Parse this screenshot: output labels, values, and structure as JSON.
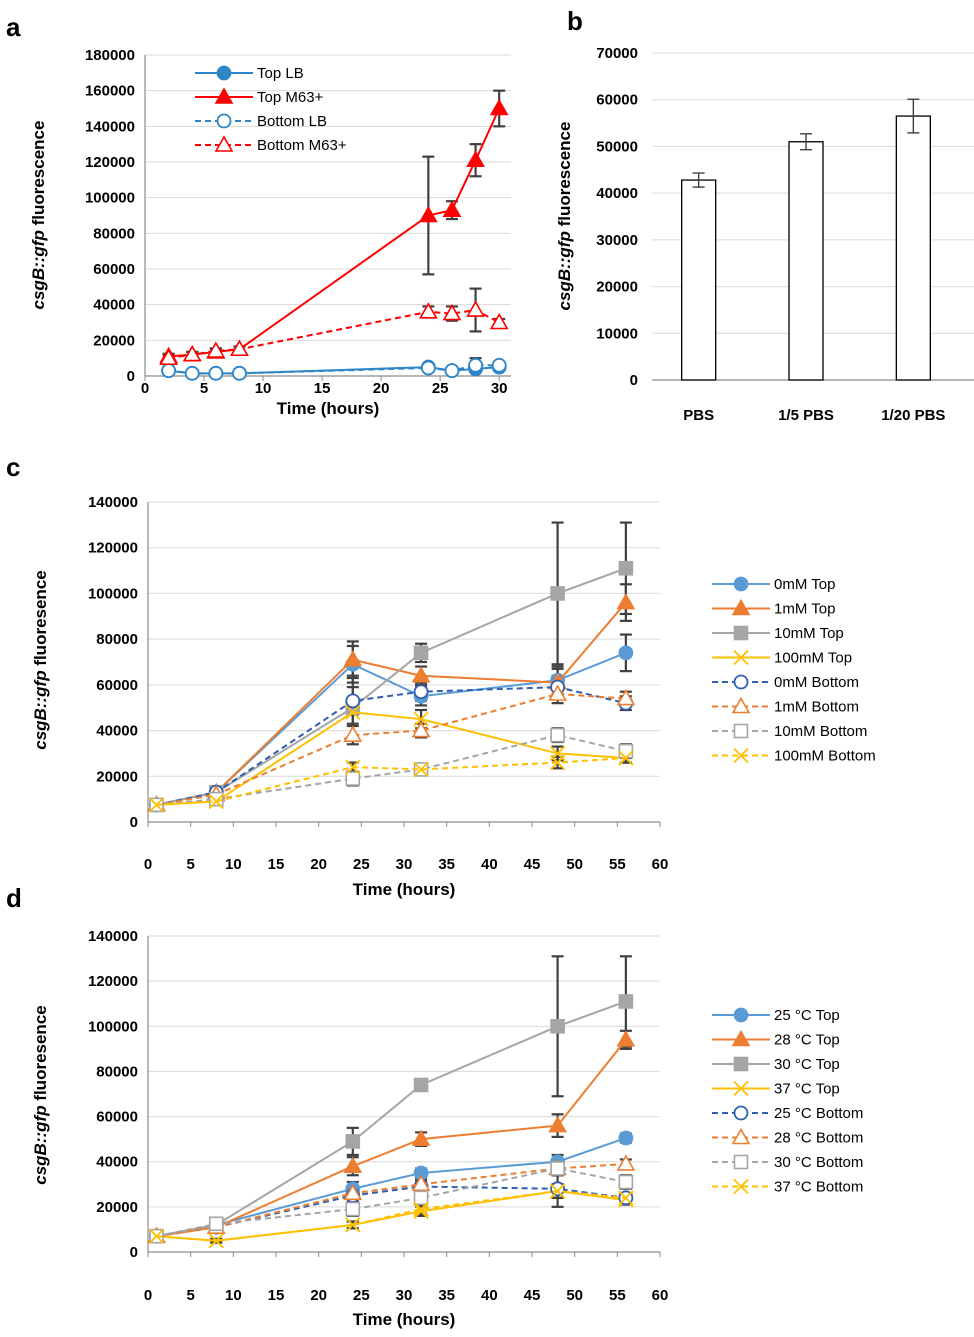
{
  "panels": {
    "a": {
      "letter": "a"
    },
    "b": {
      "letter": "b"
    },
    "c": {
      "letter": "c"
    },
    "d": {
      "letter": "d"
    }
  },
  "colors": {
    "blue": "#3366cc",
    "blue_line": "#2e86c8",
    "red": "#ff0000",
    "lightblue": "#5b9bd5",
    "orange": "#ed7d31",
    "gray": "#a5a5a5",
    "yellow": "#ffc000",
    "error_bar": "#404040"
  },
  "chart_data": [
    {
      "id": "a",
      "type": "line",
      "title": "",
      "ylabel_italic": "csgB::gfp",
      "ylabel_rest": " fluorescence",
      "xlabel": "Time (hours)",
      "xlim": [
        0,
        31
      ],
      "ylim": [
        0,
        180000
      ],
      "xticks": [
        0,
        5,
        10,
        15,
        20,
        25,
        30
      ],
      "yticks": [
        0,
        20000,
        40000,
        60000,
        80000,
        100000,
        120000,
        140000,
        160000,
        180000
      ],
      "grid": true,
      "legend_position": "top-left",
      "series": [
        {
          "name": "Top LB",
          "color": "#2e86c8",
          "marker": "circle",
          "filled": true,
          "dashed": false,
          "x": [
            2,
            4,
            6,
            8,
            24,
            26,
            28,
            30
          ],
          "y": [
            3000,
            1500,
            1500,
            1500,
            5000,
            3000,
            4000,
            5000
          ],
          "err": [
            500,
            400,
            400,
            400,
            800,
            600,
            1200,
            1000
          ]
        },
        {
          "name": "Top M63+",
          "color": "#ff0000",
          "marker": "triangle",
          "filled": true,
          "dashed": false,
          "x": [
            2,
            4,
            6,
            8,
            24,
            26,
            28,
            30
          ],
          "y": [
            11000,
            12000,
            13500,
            15000,
            90000,
            93000,
            121000,
            150000
          ],
          "err": [
            1500,
            1500,
            1500,
            1500,
            33000,
            5000,
            9000,
            10000
          ]
        },
        {
          "name": "Bottom LB",
          "color": "#2e86c8",
          "marker": "circle",
          "filled": false,
          "dashed": true,
          "x": [
            2,
            4,
            6,
            8,
            24,
            26,
            28,
            30
          ],
          "y": [
            3000,
            1500,
            1500,
            1500,
            4500,
            3000,
            6000,
            6000
          ],
          "err": [
            500,
            400,
            400,
            400,
            800,
            600,
            4000,
            1000
          ]
        },
        {
          "name": "Bottom M63+",
          "color": "#ff0000",
          "marker": "triangle",
          "filled": false,
          "dashed": true,
          "x": [
            2,
            4,
            6,
            8,
            24,
            26,
            28,
            30
          ],
          "y": [
            10000,
            12000,
            14000,
            15000,
            36000,
            35000,
            37000,
            30000
          ],
          "err": [
            1500,
            1500,
            1500,
            1500,
            3000,
            4000,
            12000,
            2000
          ]
        }
      ]
    },
    {
      "id": "b",
      "type": "bar",
      "title": "",
      "ylabel_italic": "csgB::gfp",
      "ylabel_rest": " fluorescence",
      "xlabel": "",
      "categories": [
        "PBS",
        "1/5 PBS",
        "1/20 PBS"
      ],
      "values": [
        42800,
        51000,
        56500
      ],
      "err": [
        1500,
        1700,
        3600
      ],
      "ylim": [
        0,
        70000
      ],
      "yticks": [
        0,
        10000,
        20000,
        30000,
        40000,
        50000,
        60000,
        70000
      ],
      "grid": true
    },
    {
      "id": "c",
      "type": "line",
      "title": "",
      "ylabel_italic": "csgB::gfp",
      "ylabel_rest": " fluoresence",
      "xlabel": "Time (hours)",
      "xlim": [
        0,
        60
      ],
      "ylim": [
        0,
        140000
      ],
      "xticks": [
        0,
        5,
        10,
        15,
        20,
        25,
        30,
        35,
        40,
        45,
        50,
        55,
        60
      ],
      "yticks": [
        0,
        20000,
        40000,
        60000,
        80000,
        100000,
        120000,
        140000
      ],
      "grid": true,
      "legend_position": "right",
      "series": [
        {
          "name": "0mM Top",
          "color": "#5b9bd5",
          "marker": "circle",
          "filled": true,
          "dashed": false,
          "x": [
            1,
            8,
            24,
            32,
            48,
            56
          ],
          "y": [
            7500,
            13000,
            69000,
            55000,
            62000,
            74000
          ],
          "err": [
            800,
            1500,
            8000,
            4000,
            6000,
            8000
          ]
        },
        {
          "name": "1mM Top",
          "color": "#ed7d31",
          "marker": "triangle",
          "filled": true,
          "dashed": false,
          "x": [
            1,
            8,
            24,
            32,
            48,
            56
          ],
          "y": [
            7500,
            13000,
            71000,
            64000,
            61000,
            96000
          ],
          "err": [
            800,
            1500,
            8000,
            4000,
            6000,
            8000
          ]
        },
        {
          "name": "10mM Top",
          "color": "#a5a5a5",
          "marker": "square",
          "filled": true,
          "dashed": false,
          "x": [
            1,
            8,
            24,
            32,
            48,
            56
          ],
          "y": [
            7500,
            13000,
            50000,
            74000,
            100000,
            111000
          ],
          "err": [
            800,
            1500,
            14000,
            4000,
            31000,
            20000
          ]
        },
        {
          "name": "100mM Top",
          "color": "#ffc000",
          "marker": "x",
          "filled": true,
          "dashed": false,
          "x": [
            1,
            8,
            24,
            32,
            48,
            56
          ],
          "y": [
            7500,
            9000,
            48000,
            45000,
            30000,
            28000
          ],
          "err": [
            800,
            1500,
            5000,
            4000,
            3000,
            2000
          ]
        },
        {
          "name": "0mM Bottom",
          "color": "#2e5fb0",
          "marker": "circle",
          "filled": false,
          "dashed": true,
          "x": [
            1,
            8,
            24,
            32,
            48,
            56
          ],
          "y": [
            7500,
            13000,
            53000,
            57000,
            59000,
            52000
          ],
          "err": [
            800,
            1500,
            6000,
            4000,
            5000,
            3000
          ]
        },
        {
          "name": "1mM Bottom",
          "color": "#ed7d31",
          "marker": "triangle",
          "filled": false,
          "dashed": true,
          "x": [
            1,
            8,
            24,
            32,
            48,
            56
          ],
          "y": [
            7500,
            12000,
            38000,
            40000,
            56000,
            54000
          ],
          "err": [
            800,
            1500,
            4000,
            3000,
            4000,
            3000
          ]
        },
        {
          "name": "10mM Bottom",
          "color": "#a5a5a5",
          "marker": "square",
          "filled": false,
          "dashed": true,
          "x": [
            1,
            8,
            24,
            32,
            48,
            56
          ],
          "y": [
            7500,
            10000,
            19000,
            23000,
            38000,
            31000
          ],
          "err": [
            800,
            1500,
            3000,
            2000,
            3000,
            3000
          ]
        },
        {
          "name": "100mM Bottom",
          "color": "#ffc000",
          "marker": "x",
          "filled": false,
          "dashed": true,
          "x": [
            1,
            8,
            24,
            32,
            48,
            56
          ],
          "y": [
            7500,
            9000,
            24000,
            23000,
            26000,
            28000
          ],
          "err": [
            800,
            1500,
            2000,
            2000,
            2500,
            2000
          ]
        }
      ]
    },
    {
      "id": "d",
      "type": "line",
      "title": "",
      "ylabel_italic": "csgB::gfp",
      "ylabel_rest": " fluoresence",
      "xlabel": "Time (hours)",
      "xlim": [
        0,
        60
      ],
      "ylim": [
        0,
        140000
      ],
      "xticks": [
        0,
        5,
        10,
        15,
        20,
        25,
        30,
        35,
        40,
        45,
        50,
        55,
        60
      ],
      "yticks": [
        0,
        20000,
        40000,
        60000,
        80000,
        100000,
        120000,
        140000
      ],
      "grid": true,
      "legend_position": "right",
      "series": [
        {
          "name": "25 °C Top",
          "color": "#5b9bd5",
          "marker": "circle",
          "filled": true,
          "dashed": false,
          "x": [
            1,
            8,
            24,
            32,
            48,
            56
          ],
          "y": [
            7000,
            12000,
            28000,
            35000,
            40000,
            50500
          ],
          "err": [
            800,
            1500,
            3000,
            2000,
            3000,
            2000
          ]
        },
        {
          "name": "28 °C Top",
          "color": "#ed7d31",
          "marker": "triangle",
          "filled": true,
          "dashed": false,
          "x": [
            1,
            8,
            24,
            32,
            48,
            56
          ],
          "y": [
            7000,
            11000,
            38000,
            50000,
            56000,
            94000
          ],
          "err": [
            800,
            1500,
            4000,
            3000,
            5000,
            4000
          ]
        },
        {
          "name": "30 °C Top",
          "color": "#a5a5a5",
          "marker": "square",
          "filled": true,
          "dashed": false,
          "x": [
            1,
            8,
            24,
            32,
            48,
            56
          ],
          "y": [
            7000,
            12000,
            49000,
            74000,
            100000,
            111000
          ],
          "err": [
            800,
            1500,
            6000,
            2000,
            31000,
            20000
          ]
        },
        {
          "name": "37 °C Top",
          "color": "#ffc000",
          "marker": "x",
          "filled": true,
          "dashed": false,
          "x": [
            1,
            8,
            24,
            32,
            48,
            56
          ],
          "y": [
            7000,
            5000,
            12000,
            18000,
            27000,
            23000
          ],
          "err": [
            800,
            800,
            1500,
            2000,
            3000,
            2000
          ]
        },
        {
          "name": "25 °C Bottom",
          "color": "#2e5fb0",
          "marker": "circle",
          "filled": false,
          "dashed": true,
          "x": [
            1,
            8,
            24,
            32,
            48,
            56
          ],
          "y": [
            7000,
            11000,
            25000,
            29000,
            28000,
            24000
          ],
          "err": [
            800,
            1500,
            3000,
            2000,
            8000,
            2000
          ]
        },
        {
          "name": "28 °C Bottom",
          "color": "#ed7d31",
          "marker": "triangle",
          "filled": false,
          "dashed": true,
          "x": [
            1,
            8,
            24,
            32,
            48,
            56
          ],
          "y": [
            7000,
            11000,
            26000,
            30000,
            37000,
            39000
          ],
          "err": [
            800,
            1500,
            3000,
            2000,
            3000,
            2000
          ]
        },
        {
          "name": "30 °C Bottom",
          "color": "#a5a5a5",
          "marker": "square",
          "filled": false,
          "dashed": true,
          "x": [
            1,
            8,
            24,
            32,
            48,
            56
          ],
          "y": [
            7000,
            12500,
            19000,
            24000,
            37000,
            31000
          ],
          "err": [
            800,
            1500,
            3000,
            3000,
            3000,
            3000
          ]
        },
        {
          "name": "37 °C Bottom",
          "color": "#ffc000",
          "marker": "x",
          "filled": false,
          "dashed": true,
          "x": [
            1,
            8,
            24,
            32,
            48,
            56
          ],
          "y": [
            7000,
            5000,
            12000,
            19000,
            27000,
            24000
          ],
          "err": [
            800,
            800,
            1500,
            2000,
            3000,
            2000
          ]
        }
      ]
    }
  ]
}
